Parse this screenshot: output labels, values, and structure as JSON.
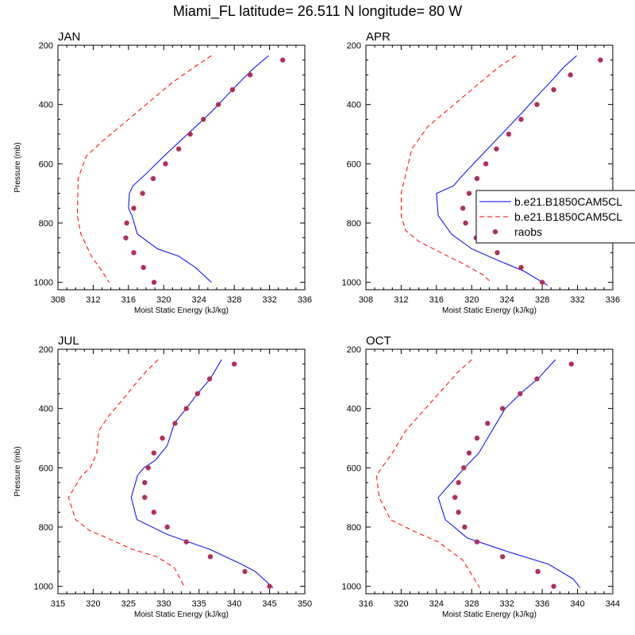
{
  "title": "Miami_FL  latitude= 26.511 N longitude= 80 W",
  "colors": {
    "model1": "#0000ff",
    "model2": "#ff0000",
    "obs": "#b0305a"
  },
  "legend": {
    "entries": [
      {
        "label": "b.e21.B1850CAM5CL",
        "style": "solid",
        "color": "#0000ff"
      },
      {
        "label": "b.e21.B1850CAM5CL",
        "style": "dashed",
        "color": "#ff0000"
      },
      {
        "label": "raobs",
        "style": "marker",
        "color": "#b0305a"
      }
    ]
  },
  "chart_data": [
    {
      "type": "line",
      "title": "JAN",
      "xlabel": "Moist Static Energy (kJ/kg)",
      "ylabel": "Pressure (mb)",
      "xlim": [
        308,
        336
      ],
      "ylim": [
        200,
        1025
      ],
      "xticks": [
        308,
        312,
        316,
        320,
        324,
        328,
        332,
        336
      ],
      "yticks": [
        200,
        400,
        600,
        800,
        1000
      ],
      "series": [
        {
          "name": "b.e21.B1850CAM5CL",
          "style": "solid",
          "x": [
            331.9,
            330.3,
            328.6,
            327.0,
            325.4,
            323.6,
            321.8,
            320.0,
            318.3,
            316.5,
            316.1,
            316.0,
            316.4,
            317.0,
            319.3,
            321.7,
            323.6,
            325.4
          ],
          "y": [
            235,
            275,
            325,
            375,
            425,
            475,
            525,
            575,
            625,
            675,
            700,
            750,
            775,
            837,
            887,
            912,
            950,
            1000
          ]
        },
        {
          "name": "b.e21.B1850CAM5CL",
          "style": "dashed",
          "x": [
            325.4,
            323.4,
            321.0,
            319.0,
            317.0,
            315.0,
            313.0,
            311.2,
            310.3,
            310.2,
            310.6,
            311.8,
            313.0,
            313.8
          ],
          "y": [
            235,
            275,
            325,
            375,
            425,
            475,
            525,
            575,
            650,
            775,
            837,
            912,
            962,
            1000
          ]
        },
        {
          "name": "raobs",
          "style": "marker",
          "x": [
            333.5,
            329.8,
            327.8,
            326.2,
            324.5,
            323.0,
            321.7,
            320.2,
            318.8,
            317.6,
            316.6,
            315.8,
            315.7,
            316.6,
            317.7,
            318.9
          ],
          "y": [
            250,
            300,
            350,
            400,
            450,
            500,
            550,
            600,
            650,
            700,
            750,
            800,
            850,
            900,
            950,
            1000
          ]
        }
      ]
    },
    {
      "type": "line",
      "title": "APR",
      "xlabel": "Moist Static Energy (kJ/kg)",
      "ylabel": "",
      "xlim": [
        308,
        336
      ],
      "ylim": [
        200,
        1025
      ],
      "xticks": [
        308,
        312,
        316,
        320,
        324,
        328,
        332,
        336
      ],
      "yticks": [
        200,
        400,
        600,
        800,
        1000
      ],
      "series": [
        {
          "name": "b.e21.B1850CAM5CL",
          "style": "solid",
          "x": [
            331.9,
            330.4,
            328.9,
            327.3,
            325.8,
            324.2,
            322.6,
            321.0,
            319.4,
            317.9,
            316.0,
            316.2,
            317.7,
            320.0,
            322.9,
            325.9,
            328.6
          ],
          "y": [
            235,
            275,
            325,
            375,
            425,
            475,
            525,
            575,
            625,
            675,
            700,
            775,
            837,
            887,
            925,
            962,
            1010
          ]
        },
        {
          "name": "b.e21.B1850CAM5CL",
          "style": "dashed",
          "x": [
            325.0,
            323.0,
            321.0,
            319.0,
            317.0,
            315.0,
            313.2,
            312.0,
            312.0,
            312.5,
            314.0,
            316.5,
            319.0,
            321.3,
            322.2
          ],
          "y": [
            235,
            275,
            325,
            375,
            425,
            475,
            550,
            700,
            775,
            825,
            862,
            900,
            937,
            975,
            1000
          ]
        },
        {
          "name": "raobs",
          "style": "marker",
          "x": [
            334.6,
            331.2,
            329.3,
            327.4,
            325.6,
            324.2,
            322.8,
            321.6,
            320.6,
            319.7,
            319.0,
            319.3,
            320.5,
            322.9,
            325.6,
            328.0
          ],
          "y": [
            250,
            300,
            350,
            400,
            450,
            500,
            550,
            600,
            650,
            700,
            750,
            800,
            850,
            900,
            950,
            1000
          ]
        }
      ]
    },
    {
      "type": "line",
      "title": "JUL",
      "xlabel": "Moist Static Energy (kJ/kg)",
      "ylabel": "Pressure (mb)",
      "xlim": [
        315,
        350
      ],
      "ylim": [
        200,
        1025
      ],
      "xticks": [
        315,
        320,
        325,
        330,
        335,
        340,
        345,
        350
      ],
      "yticks": [
        200,
        400,
        600,
        800,
        1000
      ],
      "series": [
        {
          "name": "b.e21.B1850CAM5CL",
          "style": "solid",
          "x": [
            338.2,
            336.6,
            334.8,
            333.2,
            331.5,
            330.5,
            328.8,
            327.2,
            326.3,
            325.4,
            326.2,
            330.5,
            336.5,
            341.0,
            343.0,
            345.5
          ],
          "y": [
            235,
            300,
            350,
            400,
            450,
            525,
            575,
            600,
            625,
            700,
            775,
            825,
            875,
            925,
            950,
            1005
          ]
        },
        {
          "name": "b.e21.B1850CAM5CL",
          "style": "dashed",
          "x": [
            329.2,
            327.5,
            325.7,
            324.0,
            322.2,
            320.8,
            320.5,
            319.6,
            318.4,
            316.5,
            317.5,
            319.5,
            322.0,
            325.5,
            329.0,
            331.5,
            333.0
          ],
          "y": [
            235,
            275,
            325,
            375,
            425,
            475,
            550,
            600,
            625,
            700,
            775,
            812,
            837,
            875,
            900,
            937,
            1005
          ]
        },
        {
          "name": "raobs",
          "style": "marker",
          "x": [
            340.0,
            336.5,
            334.8,
            333.2,
            331.6,
            329.8,
            328.6,
            327.8,
            327.3,
            327.3,
            328.6,
            330.5,
            333.2,
            336.6,
            341.5,
            345.0
          ],
          "y": [
            250,
            300,
            350,
            400,
            450,
            500,
            550,
            600,
            650,
            700,
            750,
            800,
            850,
            900,
            950,
            1000
          ]
        }
      ]
    },
    {
      "type": "line",
      "title": "OCT",
      "xlabel": "Moist Static Energy (kJ/kg)",
      "ylabel": "",
      "xlim": [
        316,
        344
      ],
      "ylim": [
        200,
        1025
      ],
      "xticks": [
        316,
        320,
        324,
        328,
        332,
        336,
        340,
        344
      ],
      "yticks": [
        200,
        400,
        600,
        800,
        1000
      ],
      "series": [
        {
          "name": "b.e21.B1850CAM5CL",
          "style": "solid",
          "x": [
            337.5,
            335.5,
            333.5,
            331.8,
            330.3,
            328.8,
            327.2,
            325.7,
            324.2,
            325.0,
            327.5,
            332.5,
            336.7,
            339.5,
            340.3
          ],
          "y": [
            235,
            300,
            350,
            400,
            475,
            550,
            600,
            650,
            700,
            775,
            837,
            887,
            925,
            975,
            1005
          ]
        },
        {
          "name": "b.e21.B1850CAM5CL",
          "style": "dashed",
          "x": [
            328.0,
            326.5,
            325.0,
            323.5,
            322.0,
            320.5,
            319.0,
            317.2,
            317.5,
            318.8,
            321.3,
            324.2,
            327.0,
            328.9
          ],
          "y": [
            235,
            275,
            325,
            375,
            425,
            475,
            550,
            625,
            700,
            775,
            812,
            850,
            912,
            1005
          ]
        },
        {
          "name": "raobs",
          "style": "marker",
          "x": [
            339.3,
            335.4,
            333.5,
            331.5,
            329.8,
            328.6,
            327.7,
            327.1,
            326.5,
            326.1,
            326.5,
            327.2,
            328.6,
            331.5,
            335.5,
            337.3
          ],
          "y": [
            250,
            300,
            350,
            400,
            450,
            500,
            550,
            600,
            650,
            700,
            750,
            800,
            850,
            900,
            950,
            1000
          ]
        }
      ]
    }
  ]
}
